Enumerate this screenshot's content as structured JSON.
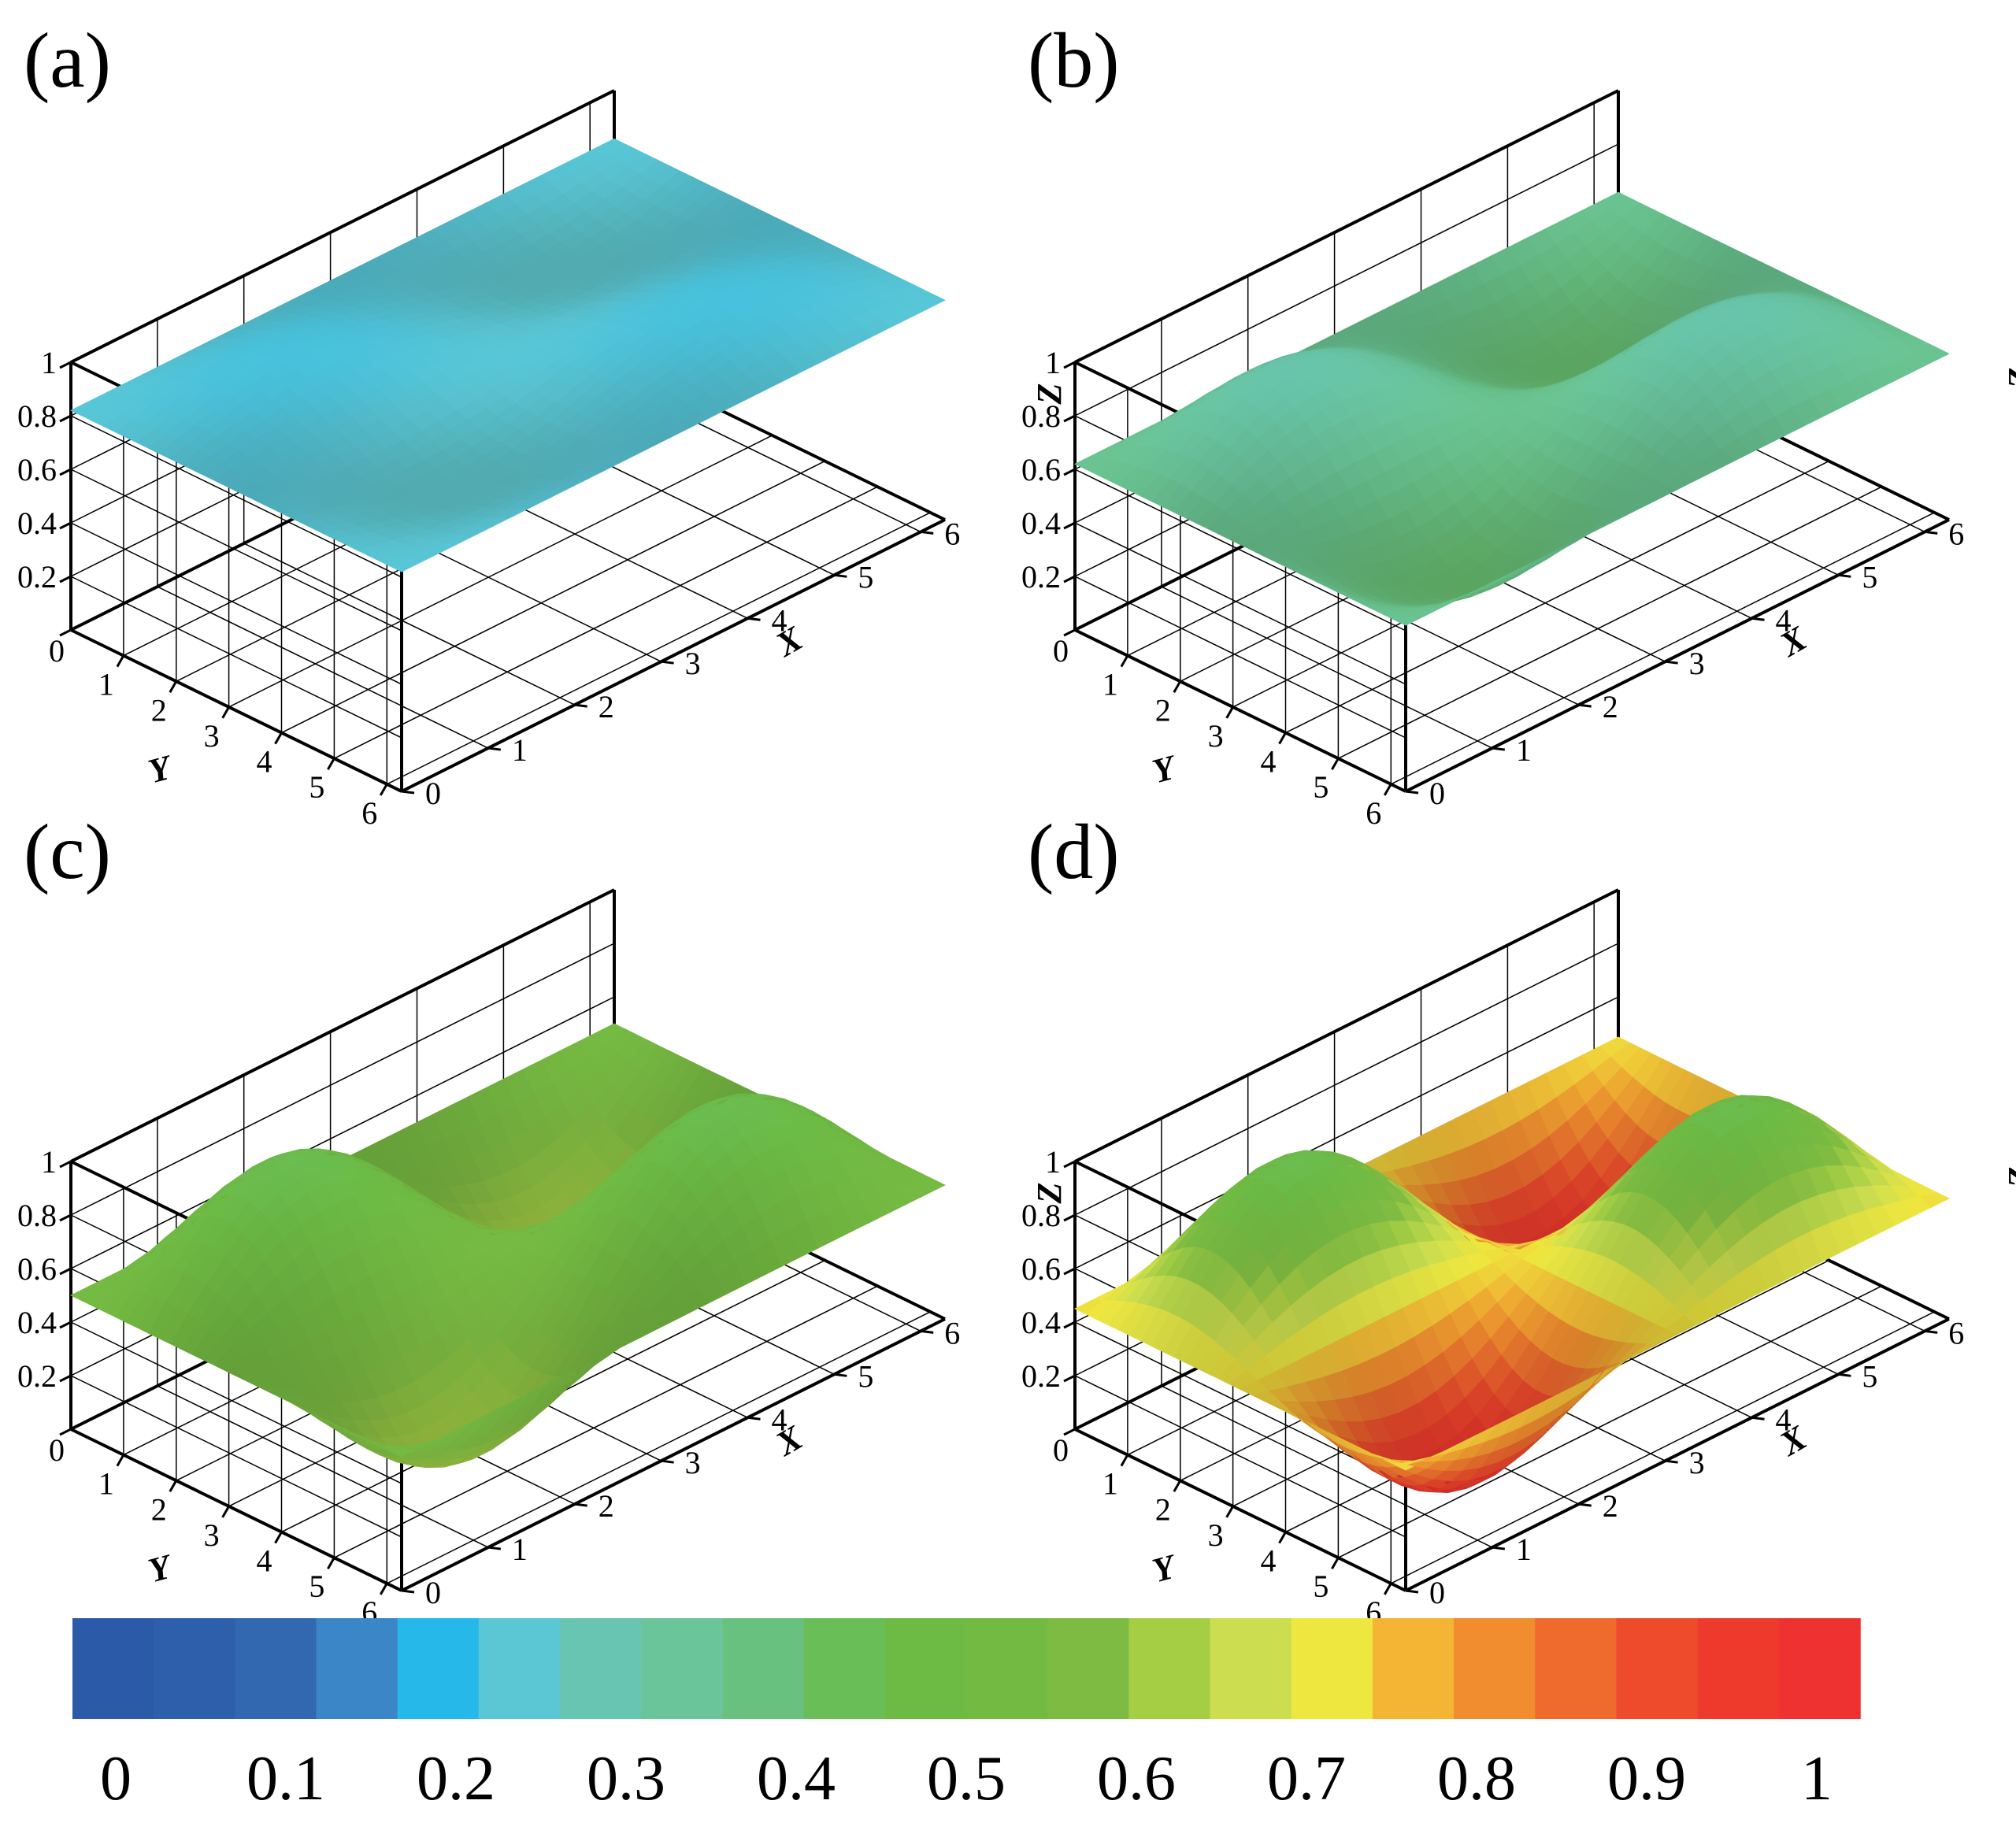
{
  "figure": {
    "panel_labels": [
      "(a)",
      "(b)",
      "(c)",
      "(d)"
    ],
    "colormap": [
      "#2B5BA8",
      "#2D5FAA",
      "#3168B0",
      "#3A86C6",
      "#27B8EA",
      "#5BC7D5",
      "#67C5B2",
      "#6AC59A",
      "#69C17F",
      "#69BE58",
      "#6DBB45",
      "#73BA42",
      "#7DBB42",
      "#A5CE45",
      "#CCDE4F",
      "#EEE73F",
      "#F4B434",
      "#F18D2F",
      "#EE6B2D",
      "#EE4A2C",
      "#EE3A2C",
      "#EE3231"
    ],
    "colorbar": {
      "min": 0,
      "max": 1,
      "labels": [
        "0",
        "0.1",
        "0.2",
        "0.3",
        "0.4",
        "0.5",
        "0.6",
        "0.7",
        "0.8",
        "0.9",
        "1"
      ]
    }
  },
  "chart_data": [
    {
      "type": "surface3d",
      "panel": "(a)",
      "xlabel": "X",
      "ylabel": "Y",
      "zlabel": "",
      "xlim": [
        0,
        6.28
      ],
      "ylim": [
        0,
        6.28
      ],
      "zlim": [
        0,
        1
      ],
      "x_ticks": [
        "0",
        "1",
        "2",
        "3",
        "4",
        "5",
        "6"
      ],
      "y_ticks": [
        "1",
        "2",
        "3",
        "4",
        "5",
        "6"
      ],
      "z_ticks": [
        "0",
        "0.2",
        "0.4",
        "0.6",
        "0.8",
        "1"
      ],
      "surface": {
        "formula": "z = base + amp * sin(x) * sin(y)",
        "base": 0.82,
        "amp": 0.1,
        "color_min": 0.22,
        "color_max": 0.25
      }
    },
    {
      "type": "surface3d",
      "panel": "(b)",
      "xlabel": "X",
      "ylabel": "Y",
      "zlabel": "Z",
      "xlim": [
        0,
        6.28
      ],
      "ylim": [
        0,
        6.28
      ],
      "zlim": [
        0,
        1
      ],
      "x_ticks": [
        "0",
        "1",
        "2",
        "3",
        "4",
        "5",
        "6"
      ],
      "y_ticks": [
        "1",
        "2",
        "3",
        "4",
        "5",
        "6"
      ],
      "z_ticks": [
        "0",
        "0.2",
        "0.4",
        "0.6",
        "0.8",
        "1"
      ],
      "surface": {
        "formula": "z = base + amp * sin(x) * sin(y)",
        "base": 0.62,
        "amp": 0.25,
        "color_min": 0.3,
        "color_max": 0.4
      }
    },
    {
      "type": "surface3d",
      "panel": "(c)",
      "xlabel": "X",
      "ylabel": "Y",
      "zlabel": "",
      "xlim": [
        0,
        6.28
      ],
      "ylim": [
        0,
        6.28
      ],
      "zlim": [
        0,
        1
      ],
      "x_ticks": [
        "0",
        "1",
        "2",
        "3",
        "4",
        "5",
        "6"
      ],
      "y_ticks": [
        "1",
        "2",
        "3",
        "4",
        "5",
        "6"
      ],
      "z_ticks": [
        "0",
        "0.2",
        "0.4",
        "0.6",
        "0.8",
        "1"
      ],
      "surface": {
        "formula": "z = base + amp * sin(x) * sin(y)",
        "base": 0.5,
        "amp": 0.4,
        "color_min": 0.45,
        "color_max": 0.62
      }
    },
    {
      "type": "surface3d",
      "panel": "(d)",
      "xlabel": "X",
      "ylabel": "Y",
      "zlabel": "Z",
      "xlim": [
        0,
        6.28
      ],
      "ylim": [
        0,
        6.28
      ],
      "zlim": [
        0,
        1
      ],
      "x_ticks": [
        "0",
        "1",
        "2",
        "3",
        "4",
        "5",
        "6"
      ],
      "y_ticks": [
        "1",
        "2",
        "3",
        "4",
        "5",
        "6"
      ],
      "z_ticks": [
        "0",
        "0.2",
        "0.4",
        "0.6",
        "0.8",
        "1"
      ],
      "surface": {
        "formula": "z = base + amp * sin(x) * sin(y)",
        "base": 0.45,
        "amp": 0.45,
        "color_min": 0.45,
        "color_max": 1.0
      }
    }
  ]
}
